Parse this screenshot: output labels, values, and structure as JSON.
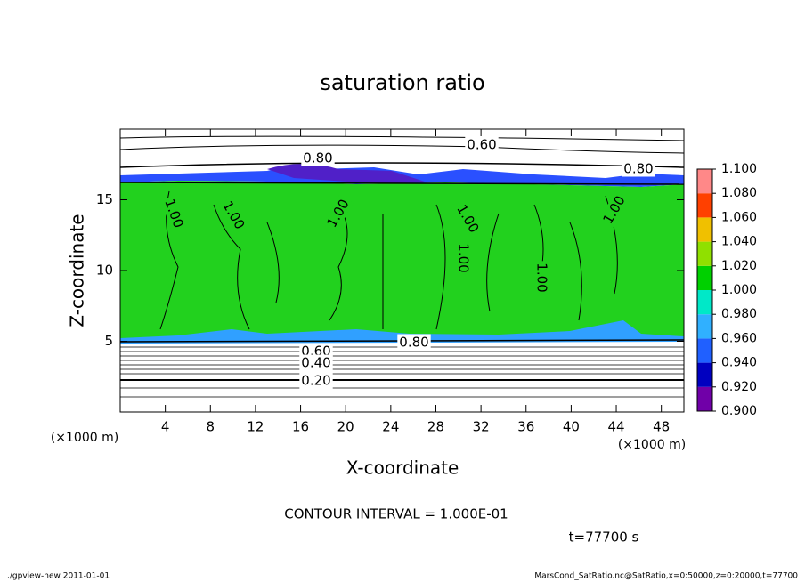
{
  "chart_data": {
    "type": "contour",
    "title": "saturation ratio",
    "xlabel": "X-coordinate",
    "ylabel": "Z-coordinate",
    "x_unit": "(×1000 m)",
    "y_unit": "(×1000 m)",
    "xlim": [
      0,
      50
    ],
    "xticks": [
      4,
      8,
      12,
      16,
      20,
      24,
      28,
      32,
      36,
      40,
      44,
      48
    ],
    "ylim": [
      0,
      20
    ],
    "yticks": [
      5,
      10,
      15
    ],
    "colorbar": {
      "ticks": [
        {
          "value": 0.9,
          "label": "0.900"
        },
        {
          "value": 0.92,
          "label": "0.920"
        },
        {
          "value": 0.94,
          "label": "0.940"
        },
        {
          "value": 0.96,
          "label": "0.960"
        },
        {
          "value": 0.98,
          "label": "0.980"
        },
        {
          "value": 1.0,
          "label": "1.000"
        },
        {
          "value": 1.02,
          "label": "1.020"
        },
        {
          "value": 1.04,
          "label": "1.040"
        },
        {
          "value": 1.06,
          "label": "1.060"
        },
        {
          "value": 1.08,
          "label": "1.080"
        },
        {
          "value": 1.1,
          "label": "1.100"
        }
      ],
      "colors": [
        "#7000a8",
        "#0000c0",
        "#2060ff",
        "#30b0ff",
        "#00e8c8",
        "#00d000",
        "#90e000",
        "#f0c000",
        "#ff4000",
        "#ff8888"
      ]
    },
    "contour_labels": [
      "0.60",
      "0.80",
      "0.80",
      "1.00",
      "1.00",
      "1.00",
      "1.00",
      "1.00",
      "1.00",
      "1.00",
      "0.80",
      "0.60",
      "0.40",
      "0.20"
    ],
    "contour_interval": "CONTOUR INTERVAL = 1.000E-01",
    "time": "t=77700 s",
    "footer_left": "./gpview-new   2011-01-01",
    "footer_right": "MarsCond_SatRatio.nc@SatRatio,x=0:50000,z=0:20000,t=77700"
  }
}
